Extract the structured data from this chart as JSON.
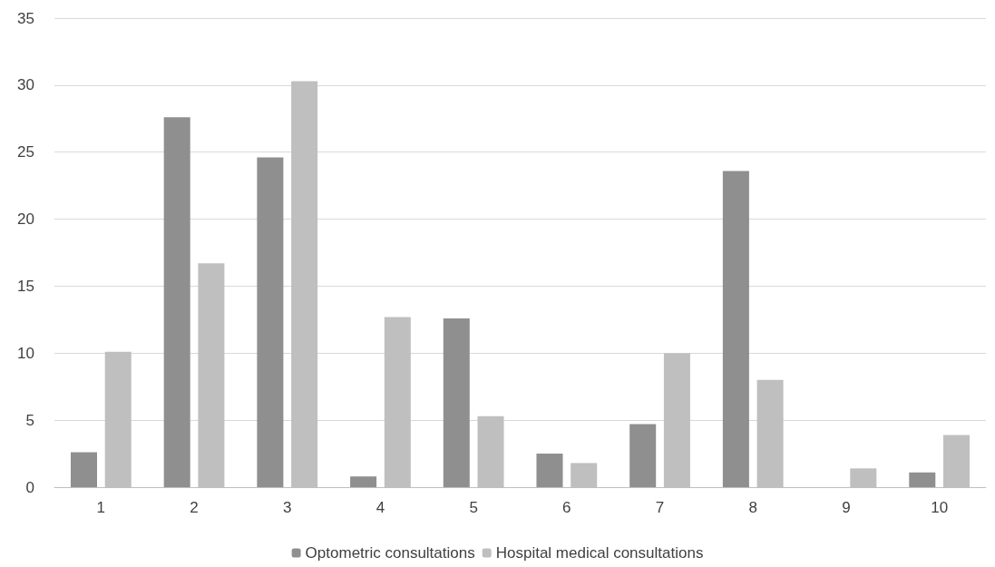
{
  "chart_data": {
    "type": "bar",
    "categories": [
      "1",
      "2",
      "3",
      "4",
      "5",
      "6",
      "7",
      "8",
      "9",
      "10"
    ],
    "series": [
      {
        "name": "Optometric consultations",
        "color": "#8f8f8f",
        "values": [
          2.6,
          27.6,
          24.6,
          0.8,
          12.6,
          2.5,
          4.7,
          23.6,
          0,
          1.1
        ]
      },
      {
        "name": "Hospital medical consultations",
        "color": "#bfbfbf",
        "values": [
          10.1,
          16.7,
          30.3,
          12.7,
          5.3,
          1.8,
          10.0,
          8.0,
          1.4,
          3.9
        ]
      }
    ],
    "ylim": [
      0,
      35
    ],
    "yticks": [
      0,
      5,
      10,
      15,
      20,
      25,
      30,
      35
    ],
    "grid": "y",
    "legend": "bottom"
  }
}
